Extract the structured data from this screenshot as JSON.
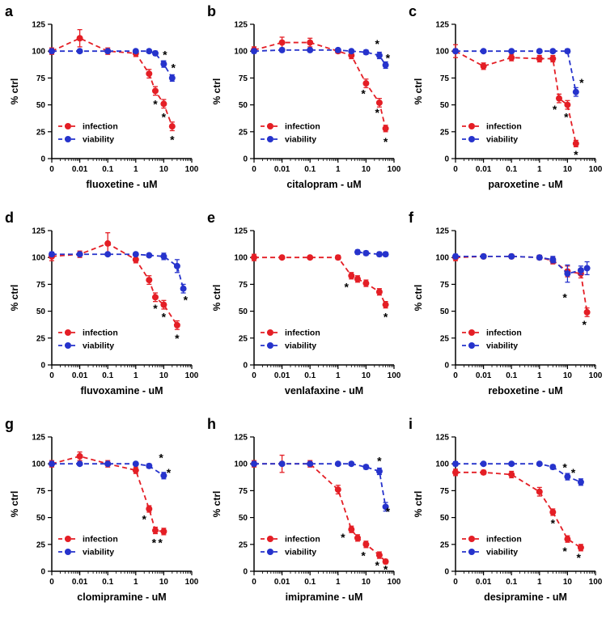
{
  "colors": {
    "infection": "#e41e25",
    "viability": "#2633cc",
    "axis": "#000000",
    "star": "#000000"
  },
  "legend": {
    "items": [
      {
        "series": "infection",
        "label": "infection"
      },
      {
        "series": "viability",
        "label": "viability"
      }
    ]
  },
  "axis": {
    "ylabel": "% ctrl",
    "yticks": [
      0,
      25,
      50,
      75,
      100,
      125
    ],
    "ylim": [
      0,
      125
    ],
    "xtick_labels": [
      "0",
      "0.01",
      "0.1",
      "1",
      "10",
      "100"
    ],
    "xtick_values": [
      0.001,
      0.01,
      0.1,
      1,
      10,
      100
    ],
    "x_scale": "log, zero control plotted at leftmost tick"
  },
  "chart_data": [
    {
      "panel": "a",
      "type": "line",
      "xlabel": "fluoxetine - uM",
      "ylabel": "% ctrl",
      "ylim": [
        0,
        125
      ],
      "series": [
        {
          "name": "infection",
          "x": [
            0,
            0.01,
            0.1,
            1,
            3,
            5,
            10,
            20
          ],
          "y": [
            100,
            112,
            100,
            98,
            79,
            63,
            51,
            30
          ],
          "err": [
            3,
            8,
            3,
            3,
            4,
            4,
            4,
            4
          ]
        },
        {
          "name": "viability",
          "x": [
            0,
            0.01,
            0.1,
            1,
            3,
            5,
            10,
            20
          ],
          "y": [
            100,
            100,
            100,
            100,
            100,
            98,
            88,
            75
          ],
          "err": [
            2,
            0,
            0,
            0,
            0,
            2,
            3,
            3
          ]
        }
      ],
      "stars": [
        {
          "x": 5,
          "y": 50
        },
        {
          "x": 10,
          "y": 38
        },
        {
          "x": 20,
          "y": 17
        },
        {
          "x": 11,
          "y": 96
        },
        {
          "x": 22,
          "y": 84
        }
      ]
    },
    {
      "panel": "b",
      "type": "line",
      "xlabel": "citalopram - uM",
      "ylabel": "% ctrl",
      "ylim": [
        0,
        125
      ],
      "series": [
        {
          "name": "infection",
          "x": [
            0,
            0.01,
            0.1,
            1,
            3,
            10,
            30,
            50
          ],
          "y": [
            101,
            108,
            108,
            100,
            96,
            70,
            52,
            28
          ],
          "err": [
            3,
            5,
            4,
            2,
            3,
            4,
            4,
            3
          ]
        },
        {
          "name": "viability",
          "x": [
            0,
            0.01,
            0.1,
            1,
            3,
            10,
            30,
            50
          ],
          "y": [
            100,
            101,
            101,
            101,
            100,
            99,
            96,
            87
          ],
          "err": [
            2,
            0,
            0,
            0,
            0,
            2,
            3,
            3
          ]
        }
      ],
      "stars": [
        {
          "x": 8,
          "y": 60
        },
        {
          "x": 25,
          "y": 42
        },
        {
          "x": 50,
          "y": 15
        },
        {
          "x": 25,
          "y": 106
        },
        {
          "x": 60,
          "y": 93
        }
      ]
    },
    {
      "panel": "c",
      "type": "line",
      "xlabel": "paroxetine - uM",
      "ylabel": "% ctrl",
      "ylim": [
        0,
        125
      ],
      "series": [
        {
          "name": "infection",
          "x": [
            0,
            0.01,
            0.1,
            1,
            3,
            5,
            10,
            20
          ],
          "y": [
            100,
            86,
            94,
            93,
            93,
            56,
            50,
            14
          ],
          "err": [
            6,
            3,
            3,
            3,
            3,
            4,
            4,
            3
          ]
        },
        {
          "name": "viability",
          "x": [
            0,
            0.01,
            0.1,
            1,
            3,
            10,
            20
          ],
          "y": [
            100,
            100,
            100,
            100,
            100,
            100,
            62
          ],
          "err": [
            2,
            0,
            0,
            0,
            0,
            2,
            4
          ]
        }
      ],
      "stars": [
        {
          "x": 3.5,
          "y": 45
        },
        {
          "x": 9,
          "y": 38
        },
        {
          "x": 20,
          "y": 3
        },
        {
          "x": 32,
          "y": 70
        }
      ]
    },
    {
      "panel": "d",
      "type": "line",
      "xlabel": "fluvoxamine - uM",
      "ylabel": "% ctrl",
      "ylim": [
        0,
        125
      ],
      "series": [
        {
          "name": "infection",
          "x": [
            0,
            0.01,
            0.1,
            1,
            3,
            5,
            10,
            30
          ],
          "y": [
            101,
            103,
            113,
            98,
            79,
            63,
            56,
            37
          ],
          "err": [
            4,
            3,
            10,
            3,
            4,
            4,
            4,
            4
          ]
        },
        {
          "name": "viability",
          "x": [
            0,
            0.01,
            0.1,
            1,
            3,
            10,
            30,
            50
          ],
          "y": [
            103,
            103,
            103,
            103,
            102,
            101,
            92,
            71
          ],
          "err": [
            2,
            0,
            0,
            0,
            0,
            3,
            6,
            4
          ]
        }
      ],
      "stars": [
        {
          "x": 5,
          "y": 52
        },
        {
          "x": 10,
          "y": 44
        },
        {
          "x": 30,
          "y": 24
        },
        {
          "x": 60,
          "y": 60
        }
      ]
    },
    {
      "panel": "e",
      "type": "line",
      "xlabel": "venlafaxine - uM",
      "ylabel": "% ctrl",
      "ylim": [
        0,
        125
      ],
      "series": [
        {
          "name": "infection",
          "x": [
            0,
            0.01,
            0.1,
            1,
            3,
            5,
            10,
            30,
            50
          ],
          "y": [
            100,
            100,
            100,
            100,
            83,
            80,
            76,
            68,
            56
          ],
          "err": [
            3,
            0,
            0,
            2,
            3,
            3,
            3,
            3,
            3
          ]
        },
        {
          "name": "viability",
          "x": [
            5,
            10,
            30,
            50
          ],
          "y": [
            105,
            104,
            103,
            103
          ],
          "err": [
            2,
            2,
            2,
            2
          ]
        }
      ],
      "stars": [
        {
          "x": 2,
          "y": 72
        },
        {
          "x": 50,
          "y": 44
        }
      ]
    },
    {
      "panel": "f",
      "type": "line",
      "xlabel": "reboxetine - uM",
      "ylabel": "% ctrl",
      "ylim": [
        0,
        125
      ],
      "series": [
        {
          "name": "infection",
          "x": [
            0,
            0.01,
            0.1,
            1,
            3,
            10,
            30,
            50
          ],
          "y": [
            100,
            101,
            101,
            100,
            97,
            87,
            85,
            49
          ],
          "err": [
            3,
            2,
            2,
            2,
            3,
            5,
            4,
            4
          ]
        },
        {
          "name": "viability",
          "x": [
            0,
            0.01,
            0.1,
            1,
            3,
            10,
            30,
            50
          ],
          "y": [
            101,
            101,
            101,
            100,
            98,
            85,
            88,
            90
          ],
          "err": [
            2,
            0,
            0,
            2,
            3,
            8,
            4,
            6
          ]
        }
      ],
      "stars": [
        {
          "x": 8,
          "y": 62
        },
        {
          "x": 40,
          "y": 37
        }
      ]
    },
    {
      "panel": "g",
      "type": "line",
      "xlabel": "clomipramine - uM",
      "ylabel": "% ctrl",
      "ylim": [
        0,
        125
      ],
      "series": [
        {
          "name": "infection",
          "x": [
            0,
            0.01,
            0.1,
            1,
            3,
            5,
            10
          ],
          "y": [
            100,
            107,
            100,
            94,
            58,
            38,
            37
          ],
          "err": [
            3,
            4,
            3,
            3,
            3,
            3,
            3
          ]
        },
        {
          "name": "viability",
          "x": [
            0,
            0.01,
            0.1,
            1,
            3,
            10
          ],
          "y": [
            100,
            100,
            100,
            100,
            98,
            89
          ],
          "err": [
            2,
            0,
            0,
            0,
            2,
            3
          ]
        }
      ],
      "stars": [
        {
          "x": 2,
          "y": 48
        },
        {
          "x": 4.5,
          "y": 26
        },
        {
          "x": 7.5,
          "y": 26
        },
        {
          "x": 8,
          "y": 105
        },
        {
          "x": 15,
          "y": 91
        }
      ]
    },
    {
      "panel": "h",
      "type": "line",
      "xlabel": "imipramine - uM",
      "ylabel": "% ctrl",
      "ylim": [
        0,
        125
      ],
      "series": [
        {
          "name": "infection",
          "x": [
            0,
            0.01,
            0.1,
            1,
            3,
            5,
            10,
            30,
            50
          ],
          "y": [
            100,
            100,
            100,
            76,
            39,
            31,
            25,
            15,
            9
          ],
          "err": [
            3,
            8,
            3,
            4,
            3,
            3,
            3,
            3,
            2
          ]
        },
        {
          "name": "viability",
          "x": [
            0,
            0.01,
            0.1,
            1,
            3,
            10,
            30,
            50
          ],
          "y": [
            100,
            100,
            100,
            100,
            100,
            97,
            93,
            60
          ],
          "err": [
            2,
            0,
            0,
            0,
            0,
            2,
            3,
            4
          ]
        }
      ],
      "stars": [
        {
          "x": 1.5,
          "y": 31
        },
        {
          "x": 8,
          "y": 14
        },
        {
          "x": 25,
          "y": 5
        },
        {
          "x": 50,
          "y": 1
        },
        {
          "x": 30,
          "y": 102
        },
        {
          "x": 60,
          "y": 55
        }
      ]
    },
    {
      "panel": "i",
      "type": "line",
      "xlabel": "desipramine - uM",
      "ylabel": "% ctrl",
      "ylim": [
        0,
        125
      ],
      "series": [
        {
          "name": "infection",
          "x": [
            0,
            0.01,
            0.1,
            1,
            3,
            10,
            30
          ],
          "y": [
            92,
            92,
            90,
            74,
            55,
            30,
            22
          ],
          "err": [
            3,
            2,
            3,
            4,
            3,
            3,
            3
          ]
        },
        {
          "name": "viability",
          "x": [
            0,
            0.01,
            0.1,
            1,
            3,
            10,
            30
          ],
          "y": [
            100,
            100,
            100,
            100,
            97,
            88,
            83
          ],
          "err": [
            2,
            0,
            0,
            0,
            2,
            3,
            3
          ]
        }
      ],
      "stars": [
        {
          "x": 3,
          "y": 44
        },
        {
          "x": 8,
          "y": 18
        },
        {
          "x": 25,
          "y": 12
        },
        {
          "x": 8,
          "y": 96
        },
        {
          "x": 16,
          "y": 91
        }
      ]
    }
  ]
}
